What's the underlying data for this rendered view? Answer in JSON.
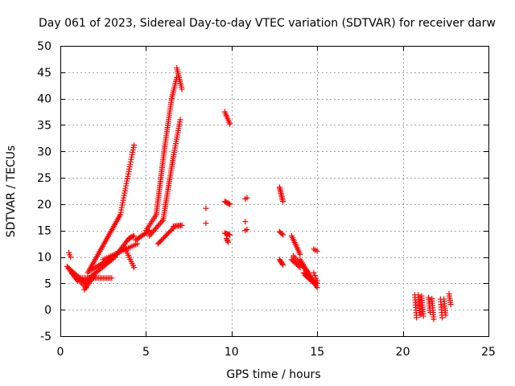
{
  "chart_data": {
    "type": "scatter",
    "title": "Day 061 of 2023, Sidereal Day-to-day VTEC variation (SDTVAR) for receiver darw",
    "xlabel": "GPS time / hours",
    "ylabel": "SDTVAR / TECUs",
    "xlim": [
      0,
      25
    ],
    "ylim": [
      -5,
      50
    ],
    "xticks": [
      0,
      5,
      10,
      15,
      20,
      25
    ],
    "yticks": [
      -5,
      0,
      5,
      10,
      15,
      20,
      25,
      30,
      35,
      40,
      45,
      50
    ],
    "grid": true,
    "marker": "+",
    "color": "#ff0000",
    "series": [
      {
        "name": "SDTVAR",
        "segments": [
          {
            "kind": "line",
            "from": [
              0.5,
              10.8
            ],
            "to": [
              0.6,
              10.0
            ],
            "n": 3
          },
          {
            "kind": "line",
            "from": [
              0.4,
              8.2
            ],
            "to": [
              1.0,
              5.5
            ],
            "n": 12
          },
          {
            "kind": "line",
            "from": [
              0.5,
              7.8
            ],
            "to": [
              1.5,
              5.0
            ],
            "n": 14
          },
          {
            "kind": "line",
            "from": [
              0.7,
              6.8
            ],
            "to": [
              1.5,
              4.2
            ],
            "n": 10
          },
          {
            "kind": "line",
            "from": [
              1.4,
              3.8
            ],
            "to": [
              2.0,
              6.5
            ],
            "n": 10
          },
          {
            "kind": "line",
            "from": [
              1.2,
              6.0
            ],
            "to": [
              3.0,
              6.0
            ],
            "n": 20
          },
          {
            "kind": "line",
            "from": [
              1.5,
              5.5
            ],
            "to": [
              3.2,
              10.0
            ],
            "n": 24
          },
          {
            "kind": "line",
            "from": [
              1.6,
              7.0
            ],
            "to": [
              3.5,
              18.0
            ],
            "n": 36
          },
          {
            "kind": "line",
            "from": [
              3.5,
              18.0
            ],
            "to": [
              4.3,
              31.2
            ],
            "n": 30
          },
          {
            "kind": "line",
            "from": [
              1.8,
              7.5
            ],
            "to": [
              3.3,
              10.5
            ],
            "n": 18
          },
          {
            "kind": "line",
            "from": [
              3.3,
              10.5
            ],
            "to": [
              4.0,
              13.5
            ],
            "n": 12
          },
          {
            "kind": "line",
            "from": [
              4.0,
              13.5
            ],
            "to": [
              4.3,
              14.0
            ],
            "n": 6
          },
          {
            "kind": "line",
            "from": [
              2.5,
              9.5
            ],
            "to": [
              4.5,
              12.5
            ],
            "n": 20
          },
          {
            "kind": "line",
            "from": [
              3.8,
              11.5
            ],
            "to": [
              4.3,
              8.0
            ],
            "n": 10
          },
          {
            "kind": "line",
            "from": [
              4.4,
              13.2
            ],
            "to": [
              5.2,
              15.0
            ],
            "n": 12
          },
          {
            "kind": "line",
            "from": [
              5.0,
              15.0
            ],
            "to": [
              5.6,
              18.0
            ],
            "n": 10
          },
          {
            "kind": "line",
            "from": [
              5.6,
              18.0
            ],
            "to": [
              6.1,
              31.0
            ],
            "n": 36
          },
          {
            "kind": "line",
            "from": [
              6.1,
              31.0
            ],
            "to": [
              6.5,
              40.0
            ],
            "n": 24
          },
          {
            "kind": "line",
            "from": [
              6.5,
              40.0
            ],
            "to": [
              6.8,
              44.0
            ],
            "n": 12
          },
          {
            "kind": "line",
            "from": [
              6.8,
              45.8
            ],
            "to": [
              7.1,
              41.8
            ],
            "n": 12
          },
          {
            "kind": "line",
            "from": [
              5.2,
              14.0
            ],
            "to": [
              6.0,
              17.0
            ],
            "n": 12
          },
          {
            "kind": "line",
            "from": [
              6.0,
              17.0
            ],
            "to": [
              6.6,
              29.0
            ],
            "n": 34
          },
          {
            "kind": "line",
            "from": [
              6.6,
              29.0
            ],
            "to": [
              7.0,
              36.0
            ],
            "n": 18
          },
          {
            "kind": "line",
            "from": [
              5.7,
              12.5
            ],
            "to": [
              6.6,
              15.5
            ],
            "n": 14
          },
          {
            "kind": "line",
            "from": [
              6.6,
              15.8
            ],
            "to": [
              7.1,
              16.0
            ],
            "n": 8
          },
          {
            "kind": "points",
            "pts": [
              [
                8.5,
                19.2
              ],
              [
                8.5,
                16.4
              ]
            ]
          },
          {
            "kind": "line",
            "from": [
              9.6,
              37.5
            ],
            "to": [
              9.9,
              35.2
            ],
            "n": 8
          },
          {
            "kind": "line",
            "from": [
              9.6,
              20.5
            ],
            "to": [
              9.9,
              20.0
            ],
            "n": 6
          },
          {
            "kind": "line",
            "from": [
              9.6,
              14.5
            ],
            "to": [
              9.9,
              14.2
            ],
            "n": 6
          },
          {
            "kind": "line",
            "from": [
              9.7,
              13.5
            ],
            "to": [
              9.8,
              12.8
            ],
            "n": 4
          },
          {
            "kind": "points",
            "pts": [
              [
                10.8,
                21.0
              ],
              [
                10.9,
                21.2
              ],
              [
                10.8,
                16.7
              ],
              [
                10.8,
                15.0
              ],
              [
                10.9,
                15.2
              ]
            ]
          },
          {
            "kind": "line",
            "from": [
              12.8,
              23.2
            ],
            "to": [
              13.0,
              20.5
            ],
            "n": 10
          },
          {
            "kind": "line",
            "from": [
              12.8,
              14.8
            ],
            "to": [
              13.0,
              14.2
            ],
            "n": 4
          },
          {
            "kind": "line",
            "from": [
              12.8,
              9.5
            ],
            "to": [
              13.0,
              8.5
            ],
            "n": 6
          },
          {
            "kind": "line",
            "from": [
              13.5,
              14.0
            ],
            "to": [
              14.0,
              10.5
            ],
            "n": 12
          },
          {
            "kind": "line",
            "from": [
              13.5,
              9.5
            ],
            "to": [
              14.0,
              8.0
            ],
            "n": 8
          },
          {
            "kind": "line",
            "from": [
              13.6,
              10.2
            ],
            "to": [
              14.5,
              7.0
            ],
            "n": 12
          },
          {
            "kind": "line",
            "from": [
              14.0,
              9.5
            ],
            "to": [
              15.0,
              4.2
            ],
            "n": 18
          },
          {
            "kind": "line",
            "from": [
              14.2,
              7.0
            ],
            "to": [
              15.0,
              5.0
            ],
            "n": 12
          },
          {
            "kind": "line",
            "from": [
              14.3,
              6.5
            ],
            "to": [
              14.9,
              4.8
            ],
            "n": 10
          },
          {
            "kind": "line",
            "from": [
              14.8,
              7.0
            ],
            "to": [
              15.0,
              5.5
            ],
            "n": 4
          },
          {
            "kind": "line",
            "from": [
              14.8,
              11.5
            ],
            "to": [
              15.0,
              11.1
            ],
            "n": 3
          },
          {
            "kind": "line",
            "from": [
              20.7,
              2.8
            ],
            "to": [
              20.8,
              -1.5
            ],
            "n": 10
          },
          {
            "kind": "line",
            "from": [
              20.9,
              2.8
            ],
            "to": [
              21.0,
              -1.0
            ],
            "n": 10
          },
          {
            "kind": "line",
            "from": [
              21.1,
              2.6
            ],
            "to": [
              21.2,
              -1.2
            ],
            "n": 10
          },
          {
            "kind": "line",
            "from": [
              21.5,
              2.3
            ],
            "to": [
              21.6,
              -0.5
            ],
            "n": 8
          },
          {
            "kind": "line",
            "from": [
              21.7,
              2.1
            ],
            "to": [
              21.8,
              -1.8
            ],
            "n": 10
          },
          {
            "kind": "line",
            "from": [
              22.2,
              2.0
            ],
            "to": [
              22.3,
              -1.5
            ],
            "n": 8
          },
          {
            "kind": "line",
            "from": [
              22.4,
              2.0
            ],
            "to": [
              22.5,
              -1.0
            ],
            "n": 8
          },
          {
            "kind": "line",
            "from": [
              22.7,
              3.0
            ],
            "to": [
              22.8,
              1.0
            ],
            "n": 6
          }
        ]
      }
    ]
  }
}
